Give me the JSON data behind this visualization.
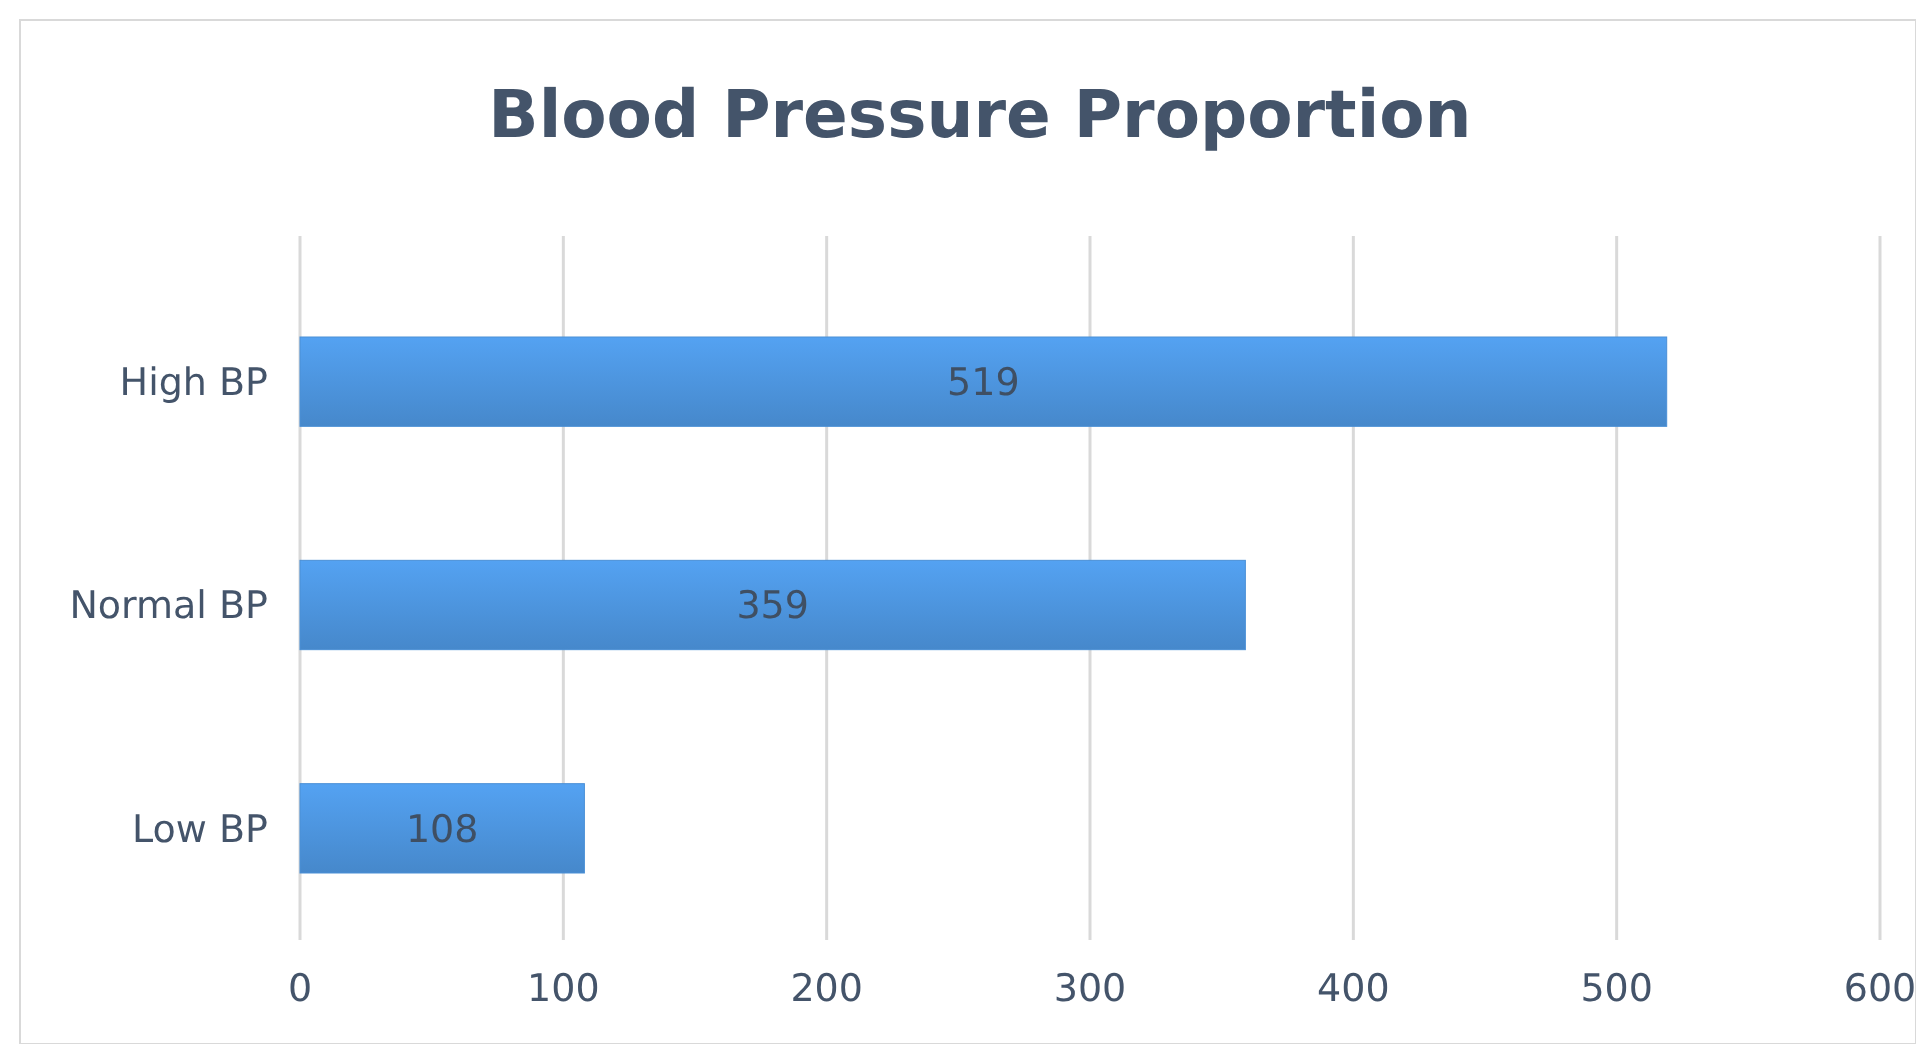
{
  "chart_data": {
    "type": "bar",
    "orientation": "horizontal",
    "title": "Blood Pressure Proportion",
    "categories": [
      "High BP",
      "Normal BP",
      "Low BP"
    ],
    "values": [
      519,
      359,
      108
    ],
    "color": "#4a8fd6",
    "xlim": [
      0,
      600
    ],
    "xticks": [
      0,
      100,
      200,
      300,
      400,
      500,
      600
    ],
    "grid": "x",
    "data_labels": true
  }
}
